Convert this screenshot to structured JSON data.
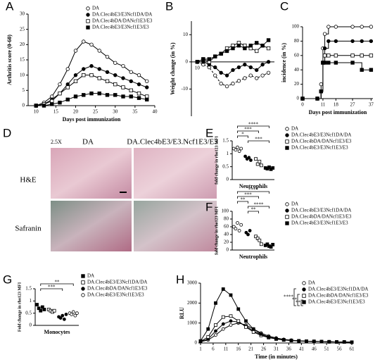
{
  "chart_data": [
    {
      "panel": "A",
      "type": "line",
      "ylabel": "Arthritis score (0-60)",
      "xlabel": "Days post immunization",
      "legend": "upper right",
      "x": [
        10,
        12,
        14,
        16,
        18,
        20,
        22,
        24,
        26,
        28,
        30,
        32,
        34,
        36,
        38
      ],
      "xlim": [
        8,
        40
      ],
      "xticks": [
        10,
        15,
        20,
        25,
        30,
        35,
        40
      ],
      "ylim": [
        0,
        30
      ],
      "yticks": [
        0,
        5,
        10,
        15,
        20,
        25,
        30
      ],
      "series": [
        {
          "name": "DA",
          "color": "#ffffff",
          "marker": "circle",
          "values": [
            0,
            1,
            3,
            7,
            12,
            18,
            21,
            20,
            18,
            16,
            14,
            13,
            11,
            10,
            8
          ]
        },
        {
          "name": "DA.Clec4bE3/E3Ncf1DA/DA",
          "color": "#000000",
          "marker": "circle",
          "values": [
            0,
            0.5,
            2,
            4,
            7,
            10,
            12,
            13,
            12,
            11,
            10,
            9,
            8,
            7,
            6
          ]
        },
        {
          "name": "DA.Clec4bDA/DANcf1E3/E3",
          "color": "#ffffff",
          "marker": "square",
          "values": [
            0,
            0.5,
            1.5,
            4,
            6,
            8,
            10,
            10,
            9,
            8,
            7,
            6,
            5,
            4,
            3
          ]
        },
        {
          "name": "DA.Clec4bE3/E3Ncf1E3/E3",
          "color": "#000000",
          "marker": "square",
          "values": [
            0,
            0,
            0.5,
            1,
            2,
            3,
            3.5,
            4,
            4,
            3.5,
            3.5,
            3,
            3,
            2.5,
            2
          ]
        }
      ]
    },
    {
      "panel": "B",
      "type": "line",
      "ylabel": "Weight change (in %)",
      "x": [
        10,
        12,
        14,
        16,
        18,
        20,
        22,
        24,
        26,
        28,
        30,
        32,
        34
      ],
      "xlim": [
        8,
        36
      ],
      "xticks": [
        10
      ],
      "ylim": [
        -20,
        15
      ],
      "yticks": [
        -10,
        0,
        10
      ],
      "series": [
        {
          "name": "DA",
          "color": "#ffffff",
          "marker": "circle",
          "values": [
            0,
            -1,
            -2,
            -5,
            -8,
            -9,
            -8,
            -7,
            -6,
            -5,
            -6,
            -5,
            -4
          ]
        },
        {
          "name": "DA.Clec4bE3/E3Ncf1DA/DA",
          "color": "#000000",
          "marker": "circle",
          "values": [
            0,
            0,
            -1,
            -2,
            -4,
            -5,
            -3,
            -2,
            -1,
            -2,
            -3,
            -1,
            0
          ]
        },
        {
          "name": "DA.Clec4bDA/DANcf1E3/E3",
          "color": "#ffffff",
          "marker": "square",
          "values": [
            0,
            1,
            0,
            2,
            3,
            5,
            6,
            7,
            6,
            5,
            4,
            6,
            5
          ]
        },
        {
          "name": "DA.Clec4bE3/E3Ncf1E3/E3",
          "color": "#000000",
          "marker": "square",
          "values": [
            0,
            1,
            1,
            2,
            3,
            4,
            5,
            6,
            5,
            6,
            7,
            6,
            8
          ]
        }
      ]
    },
    {
      "panel": "C",
      "type": "line",
      "step": true,
      "ylabel": "incidence (in %)",
      "xlabel": "Days post immunization",
      "x": [
        0,
        8,
        10,
        11,
        12,
        14,
        18,
        27,
        32,
        37
      ],
      "xlim": [
        0,
        38
      ],
      "xticks": [
        0,
        11,
        18,
        27,
        37
      ],
      "ylim": [
        0,
        100
      ],
      "yticks": [
        0,
        20,
        40,
        60,
        80,
        100
      ],
      "series": [
        {
          "name": "DA",
          "color": "#ffffff",
          "marker": "circle",
          "values": [
            0,
            0,
            20,
            70,
            90,
            100,
            100,
            100,
            100,
            100
          ]
        },
        {
          "name": "DA.Clec4bE3/E3Ncf1DA/DA",
          "color": "#000000",
          "marker": "circle",
          "values": [
            0,
            0,
            10,
            50,
            70,
            80,
            80,
            80,
            80,
            80
          ]
        },
        {
          "name": "DA.Clec4bDA/DANcf1E3/E3",
          "color": "#ffffff",
          "marker": "square",
          "values": [
            0,
            0,
            10,
            50,
            60,
            60,
            60,
            60,
            60,
            60
          ]
        },
        {
          "name": "DA.Clec4bE3/E3Ncf1E3/E3",
          "color": "#000000",
          "marker": "square",
          "values": [
            0,
            0,
            10,
            50,
            50,
            50,
            50,
            50,
            40,
            40
          ]
        }
      ]
    },
    {
      "panel": "E",
      "type": "strip",
      "ylabel": "fold change in rho123 MFI",
      "xlabel": "Neutrophils",
      "legend": "right",
      "ylim": [
        0,
        1.5
      ],
      "yticks": [
        0,
        0.5,
        1,
        1.5
      ],
      "comparisons": [
        {
          "label": "****",
          "groups": [
            0,
            3
          ]
        },
        {
          "label": "***",
          "groups": [
            0,
            2
          ]
        },
        {
          "label": "*",
          "groups": [
            0,
            1
          ]
        },
        {
          "label": "***",
          "groups": [
            1,
            3
          ]
        }
      ],
      "series": [
        {
          "name": "DA",
          "color": "#ffffff",
          "marker": "circle",
          "values": [
            1.2,
            1.15,
            1.25,
            1.1,
            1.2
          ]
        },
        {
          "name": "DA.Clec4bE3/E3Ncf1DA/DA",
          "color": "#000000",
          "marker": "circle",
          "values": [
            0.9,
            0.8,
            0.85,
            0.75
          ]
        },
        {
          "name": "DA.Clec4bDA/DANcf1E3/E3",
          "color": "#ffffff",
          "marker": "square",
          "values": [
            0.8,
            0.6,
            0.7,
            0.55
          ]
        },
        {
          "name": "DA.Clec4bE3/E3Ncf1E3/E3",
          "color": "#000000",
          "marker": "square",
          "values": [
            0.45,
            0.42,
            0.48,
            0.4,
            0.45
          ]
        }
      ]
    },
    {
      "panel": "F",
      "type": "strip",
      "ylabel": "fold change in rho123 MFI",
      "xlabel": "Neutrophils",
      "legend": "right",
      "ylim": [
        0,
        100
      ],
      "yticks": [
        0,
        20,
        40,
        60,
        80,
        100
      ],
      "comparisons": [
        {
          "label": "****",
          "groups": [
            0,
            3
          ]
        },
        {
          "label": "***",
          "groups": [
            0,
            2
          ]
        },
        {
          "label": "**",
          "groups": [
            0,
            1
          ]
        },
        {
          "label": "****",
          "groups": [
            1,
            3
          ]
        },
        {
          "label": "**",
          "groups": [
            1,
            2
          ]
        }
      ],
      "series": [
        {
          "name": "DA",
          "color": "#ffffff",
          "marker": "circle",
          "values": [
            60,
            55,
            70,
            50,
            65
          ]
        },
        {
          "name": "DA.Clec4bE3/E3Ncf1DA/DA",
          "color": "#000000",
          "marker": "circle",
          "values": [
            45,
            40,
            50
          ]
        },
        {
          "name": "DA.Clec4bDA/DANcf1E3/E3",
          "color": "#ffffff",
          "marker": "square",
          "values": [
            35,
            30,
            25,
            15
          ]
        },
        {
          "name": "DA.Clec4bE3/E3Ncf1E3/E3",
          "color": "#000000",
          "marker": "square",
          "values": [
            12,
            15,
            10,
            8,
            14
          ]
        }
      ]
    },
    {
      "panel": "G",
      "type": "strip",
      "ylabel": "Fold change in rho123 MFI",
      "xlabel": "Monocytes",
      "legend": "right",
      "ylim": [
        0,
        1.5
      ],
      "yticks": [
        0,
        0.5,
        1,
        1.5
      ],
      "comparisons": [
        {
          "label": "**",
          "groups": [
            0,
            3
          ]
        },
        {
          "label": "***",
          "groups": [
            0,
            2
          ]
        }
      ],
      "series": [
        {
          "name": "DA",
          "color": "#000000",
          "marker": "square",
          "values": [
            0.85,
            0.7,
            0.6,
            0.75,
            0.65
          ]
        },
        {
          "name": "DA.Clec4bE3/E3Ncf1DA/DA",
          "color": "#ffffff",
          "marker": "square",
          "values": [
            0.65,
            0.6,
            0.55,
            0.6
          ]
        },
        {
          "name": "DA.Clec4bDA/DANcf1E3/E3",
          "color": "#000000",
          "marker": "circle",
          "values": [
            0.35,
            0.3,
            0.4,
            0.25,
            0.45
          ]
        },
        {
          "name": "DA.Clec4bE3/E3Ncf1E3/E3",
          "color": "#ffffff",
          "marker": "circle",
          "values": [
            0.5,
            0.45,
            0.55,
            0.4,
            0.5
          ]
        }
      ]
    },
    {
      "panel": "H",
      "type": "line",
      "ylabel": "RLU",
      "xlabel": "Time (in minutes)",
      "legend": "right",
      "x": [
        1,
        4,
        7,
        10,
        13,
        16,
        19,
        22,
        25,
        28,
        31,
        34,
        37,
        40,
        43,
        46,
        49,
        52,
        55,
        58,
        61
      ],
      "xlim": [
        1,
        61
      ],
      "xticks": [
        1,
        6,
        11,
        16,
        21,
        26,
        31,
        36,
        41,
        46,
        51,
        56,
        61
      ],
      "ylim": [
        0,
        3000
      ],
      "yticks": [
        0,
        1000,
        2000,
        3000
      ],
      "comparisons": [
        {
          "label": "****",
          "groups": [
            0,
            3
          ]
        },
        {
          "label": "**",
          "groups": [
            1,
            3
          ]
        },
        {
          "label": "**",
          "groups": [
            2,
            3
          ]
        }
      ],
      "series": [
        {
          "name": "DA",
          "color": "#ffffff",
          "marker": "circle",
          "values": [
            60,
            150,
            400,
            700,
            900,
            1000,
            900,
            700,
            500,
            350,
            250,
            180,
            140,
            110,
            90,
            80,
            70,
            60,
            50,
            50,
            40
          ]
        },
        {
          "name": "DA.Clec4bE3/E3Ncf1DA/DA",
          "color": "#000000",
          "marker": "circle",
          "values": [
            70,
            200,
            600,
            950,
            1100,
            1050,
            850,
            600,
            420,
            300,
            220,
            170,
            130,
            110,
            90,
            80,
            70,
            60,
            50,
            50,
            40
          ]
        },
        {
          "name": "DA.Clec4bDA/DANcf1E3/E3",
          "color": "#ffffff",
          "marker": "square",
          "values": [
            80,
            300,
            900,
            1300,
            1350,
            1100,
            800,
            550,
            380,
            270,
            200,
            160,
            130,
            110,
            90,
            80,
            70,
            60,
            50,
            50,
            40
          ]
        },
        {
          "name": "DA.Clec4bE3/E3Ncf1E3/E3",
          "color": "#000000",
          "marker": "square",
          "values": [
            100,
            700,
            2000,
            2700,
            2400,
            1700,
            1100,
            700,
            450,
            300,
            200,
            150,
            120,
            100,
            90,
            80,
            70,
            60,
            50,
            50,
            40
          ]
        }
      ]
    }
  ],
  "histology": {
    "panel": "D",
    "magnification": "2.5X",
    "columns": [
      "DA",
      "DA.Clec4bE3/E3.Ncf1E3/E3"
    ],
    "rows": [
      "H&E",
      "Safranin"
    ]
  }
}
